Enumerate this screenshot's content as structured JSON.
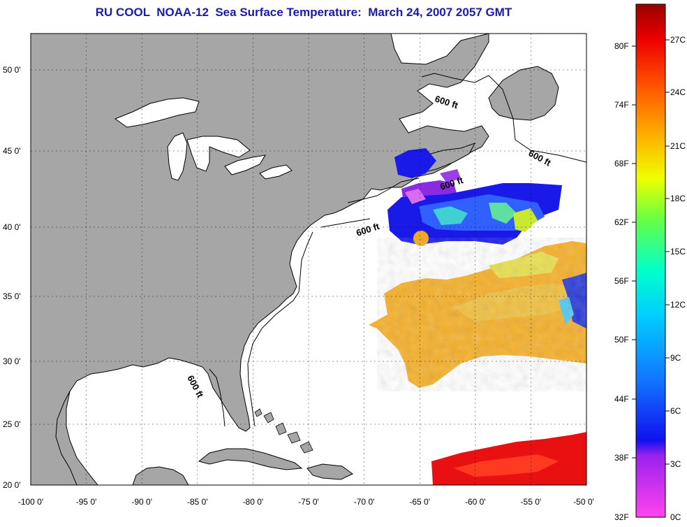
{
  "title": "RU COOL  NOAA-12  Sea Surface Temperature:  March 24, 2007 2057 GMT",
  "map": {
    "lat_labels": [
      "50 0'",
      "45 0'",
      "40 0'",
      "35 0'",
      "30 0'",
      "25 0'",
      "20 0'"
    ],
    "lon_labels": [
      "-100 0'",
      "-95 0'",
      "-90 0'",
      "-85 0'",
      "-80 0'",
      "-75 0'",
      "-70 0'",
      "-65 0'",
      "-60 0'",
      "-55 0'",
      "-50 0'"
    ],
    "contour_labels": [
      "600 ft",
      "600 ft",
      "600 ft",
      "600 ft",
      "600 ft"
    ],
    "land_color": "#a6a6a6",
    "water_color": "#ffffff"
  },
  "colorbar": {
    "fahrenheit_labels": [
      "80F",
      "74F",
      "68F",
      "62F",
      "56F",
      "50F",
      "44F",
      "38F",
      "32F"
    ],
    "celsius_labels": [
      "27C",
      "24C",
      "21C",
      "18C",
      "15C",
      "12C",
      "9C",
      "6C",
      "3C",
      "0C"
    ],
    "colors": [
      "#ff44dd",
      "#9922ee",
      "#1111ee",
      "#1177ff",
      "#00ccff",
      "#00ffcc",
      "#66ff44",
      "#eeff00",
      "#ffaa00",
      "#ff5500",
      "#ee0000",
      "#990000"
    ]
  }
}
